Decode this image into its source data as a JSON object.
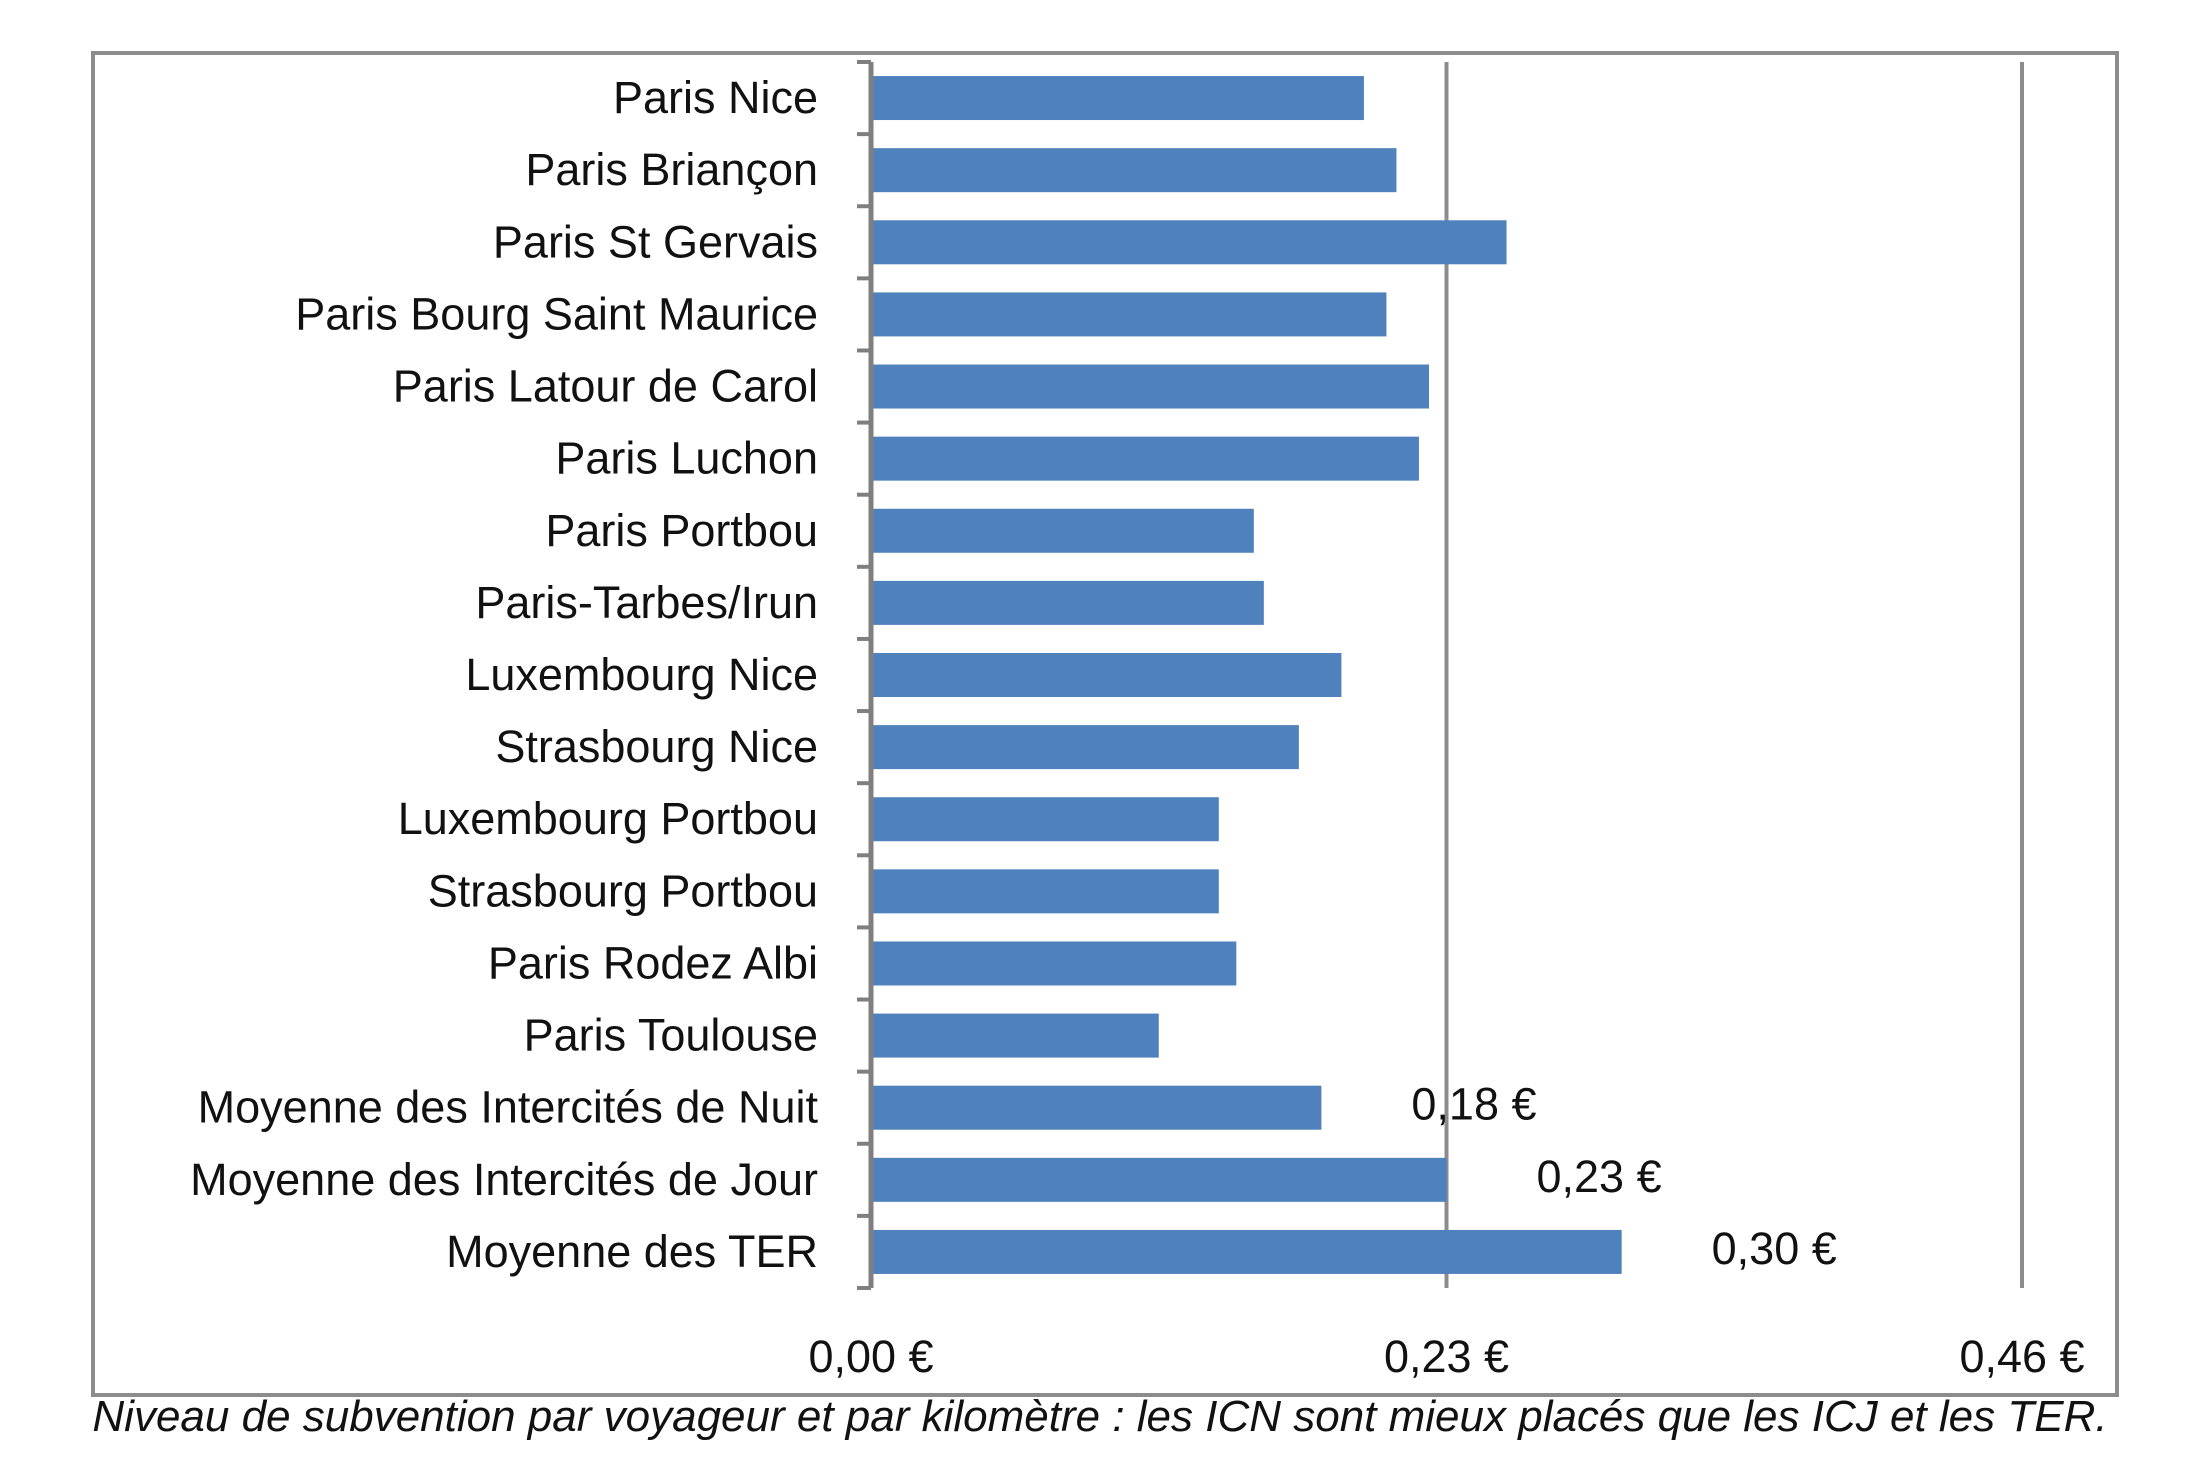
{
  "caption": "Niveau de subvention par voyageur et par kilomètre : les ICN sont mieux placés que les ICJ et les TER.",
  "chart_data": {
    "type": "bar",
    "orientation": "horizontal",
    "bar_color": "#4f81bd",
    "categories": [
      "Paris Nice",
      "Paris Briançon",
      "Paris St Gervais",
      "Paris Bourg Saint Maurice",
      "Paris Latour de Carol",
      "Paris Luchon",
      "Paris Portbou",
      "Paris-Tarbes/Irun",
      "Luxembourg Nice",
      "Strasbourg Nice",
      "Luxembourg Portbou",
      "Strasbourg Portbou",
      "Paris Rodez Albi",
      "Paris Toulouse",
      "Moyenne des Intercités de Nuit",
      "Moyenne des Intercités de Jour",
      "Moyenne des TER"
    ],
    "values": [
      0.197,
      0.21,
      0.254,
      0.206,
      0.223,
      0.219,
      0.153,
      0.157,
      0.188,
      0.171,
      0.139,
      0.139,
      0.146,
      0.115,
      0.18,
      0.23,
      0.3
    ],
    "data_labels": [
      "",
      "",
      "",
      "",
      "",
      "",
      "",
      "",
      "",
      "",
      "",
      "",
      "",
      "",
      "0,18 €",
      "0,23 €",
      "0,30 €"
    ],
    "xlim": [
      0,
      0.46
    ],
    "xticks": [
      0,
      0.23,
      0.46
    ],
    "xtick_labels": [
      "0,00 €",
      "0,23 €",
      "0,46 €"
    ],
    "gridlines": "vertical",
    "legend": "none"
  }
}
